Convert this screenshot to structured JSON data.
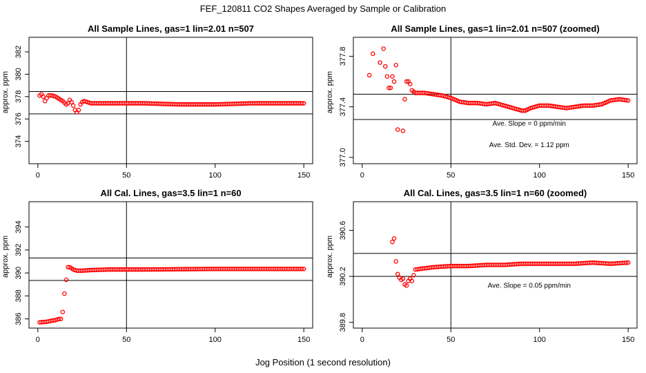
{
  "figure": {
    "title": "FEF_120811  CO2 Shapes Averaged by Sample or Calibration",
    "xlabel": "Jog Position (1 second resolution)",
    "marker_color": "#ff0000",
    "line_color": "#000000"
  },
  "chart_data": [
    {
      "id": "sample-full",
      "type": "scatter",
      "title": "All Sample Lines, gas=1 lin=2.01 n=507",
      "ylabel": "approx. ppm",
      "xlim": [
        -5,
        155
      ],
      "ylim": [
        372,
        383.3
      ],
      "xticks": [
        0,
        50,
        100,
        150
      ],
      "yticks": [
        374,
        376,
        378,
        380,
        382
      ],
      "vline": 50,
      "hlines": [
        376.45,
        378.45
      ],
      "notes": [],
      "series": [
        {
          "name": "sample",
          "y_anchor_x": [
            1,
            2,
            3,
            4,
            6,
            8,
            10,
            12,
            14,
            16,
            17,
            18,
            19,
            20,
            21,
            22,
            23,
            24,
            25,
            26,
            28,
            30,
            40,
            60,
            80,
            90,
            100,
            120,
            150
          ],
          "y_anchor_v": [
            378.1,
            378.2,
            378.0,
            377.6,
            378.1,
            378.1,
            378.0,
            377.8,
            377.6,
            377.3,
            377.4,
            377.7,
            377.5,
            377.2,
            376.8,
            376.6,
            376.8,
            377.3,
            377.5,
            377.6,
            377.5,
            377.4,
            377.4,
            377.4,
            377.3,
            377.3,
            377.3,
            377.4,
            377.4
          ],
          "x_from": 1,
          "x_to": 150
        }
      ]
    },
    {
      "id": "sample-zoom",
      "type": "scatter",
      "title": "All Sample Lines, gas=1 lin=2.01 n=507 (zoomed)",
      "ylabel": "approx. ppm",
      "xlim": [
        -5,
        155
      ],
      "ylim": [
        376.95,
        377.95
      ],
      "xticks": [
        0,
        50,
        100,
        150
      ],
      "yticks": [
        377.0,
        377.4,
        377.8
      ],
      "vline": 50,
      "hlines": [
        377.5,
        377.3
      ],
      "notes": [
        "Ave. Slope =  0  ppm/min",
        "Ave. Std. Dev. =  1.12  ppm"
      ],
      "series": [
        {
          "name": "sample",
          "x": [
            4,
            6,
            10,
            12,
            13,
            14,
            15,
            16,
            17,
            18,
            19,
            20,
            23,
            24,
            25,
            26,
            27,
            28,
            29,
            30
          ],
          "y": [
            377.65,
            377.82,
            377.75,
            377.86,
            377.72,
            377.64,
            377.55,
            377.55,
            377.64,
            377.6,
            377.73,
            377.22,
            377.21,
            377.46,
            377.6,
            377.6,
            377.58,
            377.53,
            377.52,
            377.51
          ],
          "y_anchor_x": [
            30,
            35,
            40,
            45,
            50,
            55,
            60,
            65,
            70,
            75,
            80,
            85,
            90,
            92,
            95,
            100,
            105,
            110,
            115,
            120,
            125,
            130,
            135,
            140,
            145,
            150
          ],
          "y_anchor_v": [
            377.51,
            377.51,
            377.5,
            377.49,
            377.47,
            377.44,
            377.43,
            377.43,
            377.42,
            377.43,
            377.41,
            377.39,
            377.37,
            377.37,
            377.39,
            377.41,
            377.41,
            377.4,
            377.39,
            377.4,
            377.41,
            377.41,
            377.42,
            377.45,
            377.46,
            377.45
          ],
          "x_from": 30,
          "x_to": 150
        }
      ]
    },
    {
      "id": "cal-full",
      "type": "scatter",
      "title": "All Cal. Lines, gas=3.5 lin=1 n=60",
      "ylabel": "approx. ppm",
      "xlim": [
        -5,
        155
      ],
      "ylim": [
        385.2,
        396.2
      ],
      "xticks": [
        0,
        50,
        100,
        150
      ],
      "yticks": [
        386,
        388,
        390,
        392,
        394
      ],
      "vline": 50,
      "hlines": [
        391.3,
        389.35
      ],
      "notes": [],
      "series": [
        {
          "name": "cal",
          "y_anchor_x": [
            1,
            5,
            8,
            10,
            12,
            13,
            14,
            15,
            16,
            17,
            18,
            19,
            20,
            22,
            25,
            30,
            40,
            60,
            100,
            150
          ],
          "y_anchor_v": [
            385.7,
            385.75,
            385.85,
            385.9,
            386.0,
            386.0,
            386.6,
            388.2,
            389.4,
            390.5,
            390.5,
            390.4,
            390.3,
            390.2,
            390.2,
            390.25,
            390.3,
            390.3,
            390.35,
            390.35
          ],
          "x_from": 1,
          "x_to": 150
        }
      ]
    },
    {
      "id": "cal-zoom",
      "type": "scatter",
      "title": "All Cal. Lines, gas=3.5 lin=1 n=60 (zoomed)",
      "ylabel": "approx. ppm",
      "xlim": [
        -5,
        155
      ],
      "ylim": [
        389.75,
        390.85
      ],
      "xticks": [
        0,
        50,
        100,
        150
      ],
      "yticks": [
        389.8,
        390.2,
        390.6
      ],
      "vline": 50,
      "hlines": [
        390.4,
        390.2
      ],
      "notes": [
        "Ave. Slope =  0.05  ppm/min"
      ],
      "series": [
        {
          "name": "cal",
          "x": [
            17,
            18,
            19,
            20,
            21,
            22,
            23,
            24,
            25,
            26,
            27,
            28,
            29,
            30
          ],
          "y": [
            390.5,
            390.53,
            390.33,
            390.22,
            390.19,
            390.17,
            390.18,
            390.13,
            390.12,
            390.16,
            390.18,
            390.16,
            390.21,
            390.26
          ],
          "y_anchor_x": [
            30,
            40,
            50,
            60,
            70,
            80,
            90,
            100,
            110,
            120,
            130,
            140,
            150
          ],
          "y_anchor_v": [
            390.26,
            390.28,
            390.29,
            390.29,
            390.3,
            390.3,
            390.31,
            390.31,
            390.31,
            390.31,
            390.32,
            390.31,
            390.32
          ],
          "x_from": 31,
          "x_to": 150
        }
      ]
    }
  ]
}
